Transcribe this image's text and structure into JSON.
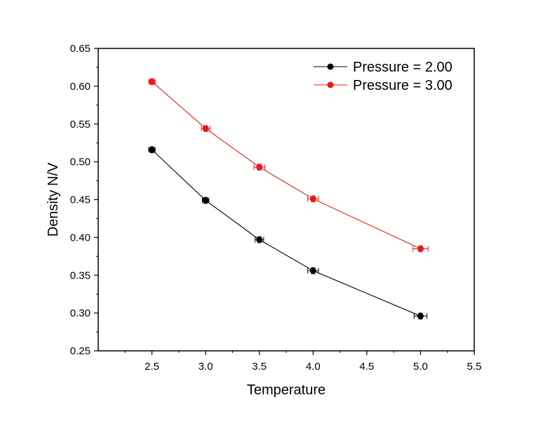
{
  "chart_data": {
    "type": "line",
    "title": "",
    "xlabel": "Temperature",
    "ylabel": "Density N/V",
    "xlim": [
      2.0,
      5.5
    ],
    "ylim": [
      0.25,
      0.65
    ],
    "xticks": [
      2.5,
      3.0,
      3.5,
      4.0,
      4.5,
      5.0,
      5.5
    ],
    "xtick_labels": [
      "2.5",
      "3.0",
      "3.5",
      "4.0",
      "4.5",
      "5.0",
      "5.5"
    ],
    "yticks": [
      0.25,
      0.3,
      0.35,
      0.4,
      0.45,
      0.5,
      0.55,
      0.6,
      0.65
    ],
    "ytick_labels": [
      "0.25",
      "0.30",
      "0.35",
      "0.40",
      "0.45",
      "0.50",
      "0.55",
      "0.60",
      "0.65"
    ],
    "grid": false,
    "legend_position": "top-right",
    "series": [
      {
        "name": "Pressure = 2.00",
        "color": "#000000",
        "x": [
          2.5,
          3.0,
          3.5,
          4.0,
          5.0
        ],
        "y": [
          0.516,
          0.449,
          0.397,
          0.356,
          0.296
        ],
        "x_error": [
          0.03,
          0.03,
          0.04,
          0.05,
          0.06
        ],
        "y_error": [
          0.004,
          0.004,
          0.004,
          0.004,
          0.004
        ]
      },
      {
        "name": "Pressure = 3.00",
        "color": "#e8191a",
        "x": [
          2.5,
          3.0,
          3.5,
          4.0,
          5.0
        ],
        "y": [
          0.606,
          0.544,
          0.493,
          0.451,
          0.385
        ],
        "x_error": [
          0.03,
          0.04,
          0.05,
          0.05,
          0.07
        ],
        "y_error": [
          0.004,
          0.004,
          0.004,
          0.004,
          0.004
        ]
      }
    ]
  }
}
